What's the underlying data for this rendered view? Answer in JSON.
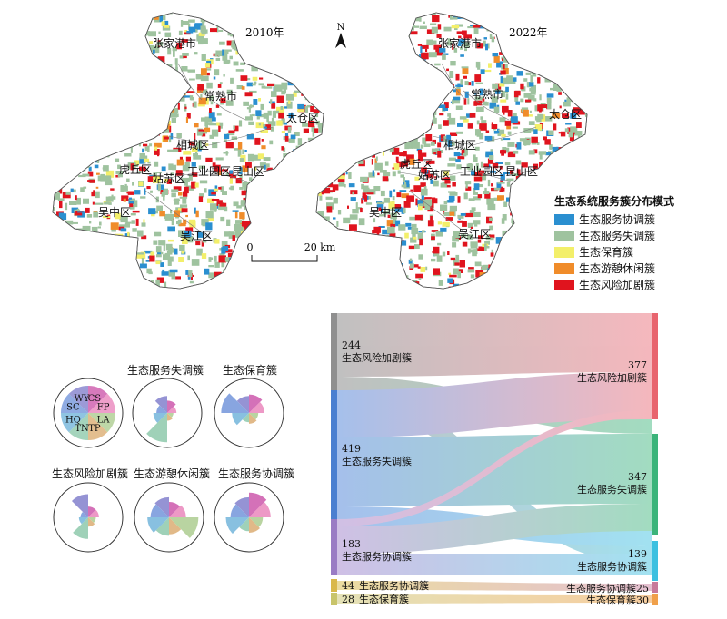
{
  "maps": [
    {
      "year_label": "2010年"
    },
    {
      "year_label": "2022年"
    }
  ],
  "place_labels": {
    "zhangjiagang": "张家港市",
    "changshu": "常熟市",
    "taicang": "太仓区",
    "xiangcheng": "相城区",
    "huqiu": "虎丘区",
    "gusu": "姑苏区",
    "sip": "工业园区",
    "kunshan": "昆山区",
    "wuzhong": "吴中区",
    "wujiang": "吴江区"
  },
  "north_label": "N",
  "scalebar": {
    "left": "0",
    "right": "20 km"
  },
  "legend": {
    "title": "生态系统服务簇分布模式",
    "items": [
      {
        "label": "生态服务协调簇",
        "color": "#2a8fd0"
      },
      {
        "label": "生态服务失调簇",
        "color": "#9fc39f"
      },
      {
        "label": "生态保育簇",
        "color": "#f3ef6a"
      },
      {
        "label": "生态游憩休闲簇",
        "color": "#f08c2a"
      },
      {
        "label": "生态风险加剧簇",
        "color": "#e0141e"
      }
    ]
  },
  "rose_key": {
    "codes": [
      "WY",
      "CS",
      "FP",
      "LA",
      "TP",
      "TN",
      "HQ",
      "SC"
    ],
    "colors": [
      "#7b78c9",
      "#c94da6",
      "#e87fb8",
      "#a8c98a",
      "#d9a86a",
      "#87c6a6",
      "#6ab0d8",
      "#6a8fd8"
    ]
  },
  "roses": [
    {
      "title": "生态服务失调簇",
      "values": [
        0.55,
        0.4,
        0.3,
        0.2,
        0.25,
        0.95,
        0.45,
        0.35
      ]
    },
    {
      "title": "生态保育簇",
      "values": [
        0.55,
        0.6,
        0.5,
        0.3,
        0.35,
        0.3,
        0.55,
        0.9
      ]
    },
    {
      "title": "生态风险加剧簇",
      "values": [
        0.75,
        0.35,
        0.35,
        0.25,
        0.3,
        0.7,
        0.3,
        0.25
      ]
    },
    {
      "title": "生态游憩休闲簇",
      "values": [
        0.65,
        0.5,
        0.55,
        0.95,
        0.55,
        0.6,
        0.7,
        0.6
      ]
    },
    {
      "title": "生态服务协调簇",
      "values": [
        0.65,
        0.8,
        0.7,
        0.45,
        0.5,
        0.45,
        0.75,
        0.6
      ]
    }
  ],
  "sankey": {
    "left_nodes": [
      {
        "value": "244",
        "label": "生态风险加剧簇",
        "color": "#8f8f8f"
      },
      {
        "value": "419",
        "label": "生态服务失调簇",
        "color": "#4a7fd0"
      },
      {
        "value": "183",
        "label": "生态服务协调簇",
        "color": "#9a7cc4"
      },
      {
        "value": "44",
        "label": "生态服务协调簇",
        "color": "#d9b84a"
      },
      {
        "value": "28",
        "label": "生态保育簇",
        "color": "#c8c46a"
      }
    ],
    "right_nodes": [
      {
        "value": "377",
        "label": "生态风险加剧簇",
        "color": "#e8646e"
      },
      {
        "value": "347",
        "label": "生态服务失调簇",
        "color": "#3bb47a"
      },
      {
        "value": "139",
        "label": "生态服务协调簇",
        "color": "#3cc0e0"
      },
      {
        "value": "25",
        "label": "生态服务协调簇",
        "color": "#c77a9a"
      },
      {
        "value": "30",
        "label": "生态保育簇",
        "color": "#f0a04a"
      }
    ]
  }
}
